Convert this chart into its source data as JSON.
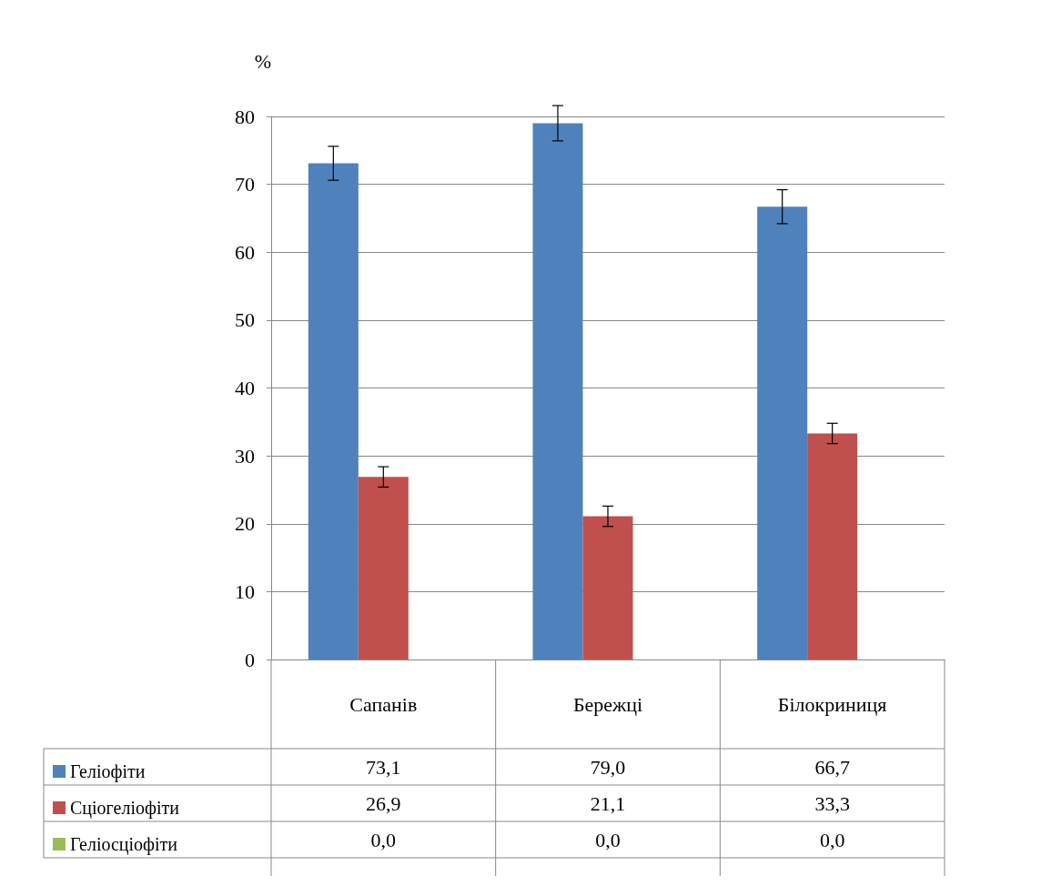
{
  "chart_data": {
    "type": "bar",
    "ylabel": "%",
    "categories": [
      "Сапанів",
      "Бережці",
      "Білокриниця"
    ],
    "series": [
      {
        "name": "Геліофіти",
        "color": "#4f81bd",
        "values": [
          73.1,
          79.0,
          66.7
        ],
        "errors": [
          2.5,
          2.6,
          2.5
        ],
        "value_labels": [
          "73,1",
          "79,0",
          "66,7"
        ]
      },
      {
        "name": "Сціогеліофіти",
        "color": "#c0504d",
        "values": [
          26.9,
          21.1,
          33.3
        ],
        "errors": [
          1.5,
          1.5,
          1.5
        ],
        "value_labels": [
          "26,9",
          "21,1",
          "33,3"
        ]
      },
      {
        "name": "Геліосціофіти",
        "color": "#9bbb59",
        "values": [
          0.0,
          0.0,
          0.0
        ],
        "value_labels": [
          "0,0",
          "0,0",
          "0,0"
        ]
      }
    ],
    "ylim": [
      0,
      80
    ],
    "yticks": [
      0,
      10,
      20,
      30,
      40,
      50,
      60,
      70,
      80
    ],
    "grid": "y",
    "legend": "bottom left"
  }
}
